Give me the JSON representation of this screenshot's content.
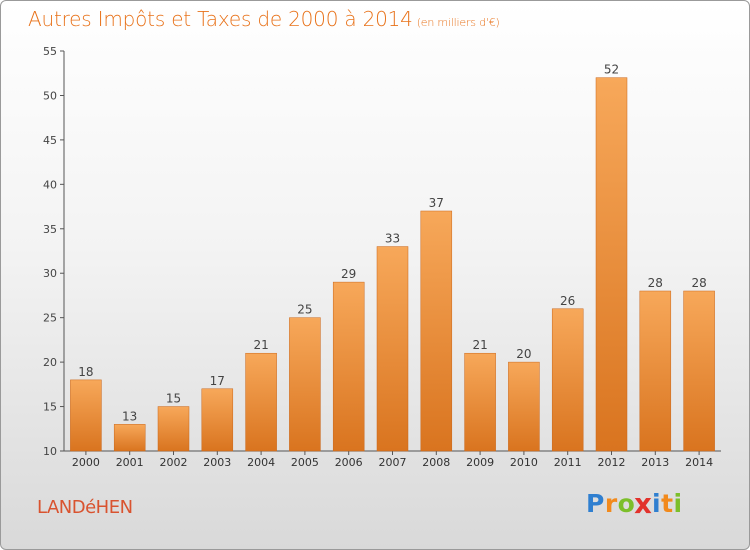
{
  "title": "Autres Impôts et Taxes de 2000 à 2014",
  "subtitle": "(en milliers d'€)",
  "town": "LANDéHEN",
  "logo": {
    "letters": [
      "P",
      "r",
      "o",
      "x",
      "i",
      "t",
      "i"
    ],
    "colors": [
      "#2f7fd0",
      "#f28a1c",
      "#7cbf2a",
      "#e2322c",
      "#2f7fd0",
      "#f28a1c",
      "#7cbf2a"
    ]
  },
  "colors": {
    "bar_top": "#f7a85a",
    "bar_bottom": "#d9741f",
    "title": "#e8721a"
  },
  "chart_data": {
    "type": "bar",
    "title": "Autres Impôts et Taxes de 2000 à 2014",
    "subtitle": "(en milliers d'€)",
    "categories": [
      "2000",
      "2001",
      "2002",
      "2003",
      "2004",
      "2005",
      "2006",
      "2007",
      "2008",
      "2009",
      "2010",
      "2011",
      "2012",
      "2013",
      "2014"
    ],
    "values": [
      18,
      13,
      15,
      17,
      21,
      25,
      29,
      33,
      37,
      21,
      20,
      26,
      52,
      28,
      28
    ],
    "ylim": [
      10,
      55
    ],
    "yticks": [
      10,
      15,
      20,
      25,
      30,
      35,
      40,
      45,
      50,
      55
    ],
    "grid": false,
    "legend": "none"
  }
}
